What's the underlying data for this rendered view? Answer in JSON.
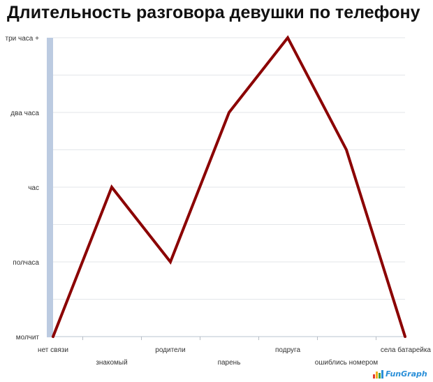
{
  "colors": {
    "series": "#8b0000",
    "axis_band": "#bccbe1",
    "logo_bar_1": "#e33b2e",
    "logo_bar_2": "#f2b01e",
    "logo_bar_3": "#3fa344",
    "logo_bar_4": "#2a8fd8"
  },
  "logo": {
    "text": "FunGraph"
  },
  "chart_data": {
    "type": "line",
    "title": "Длительность разговора девушки по телефону",
    "xlabel": "",
    "ylabel": "",
    "categories": [
      "нет связи",
      "знакомый",
      "родители",
      "парень",
      "подруга",
      "ошиблись номером",
      "села батарейка"
    ],
    "y_ticks": [
      {
        "value": 0,
        "label": "молчит"
      },
      {
        "value": 30,
        "label": "полчаса"
      },
      {
        "value": 60,
        "label": "час"
      },
      {
        "value": 120,
        "label": "два часа"
      },
      {
        "value": 180,
        "label": "три часа +"
      }
    ],
    "ylim": [
      0,
      180
    ],
    "grid": true,
    "series": [
      {
        "values": [
          0,
          60,
          30,
          120,
          180,
          90,
          0
        ]
      }
    ]
  }
}
